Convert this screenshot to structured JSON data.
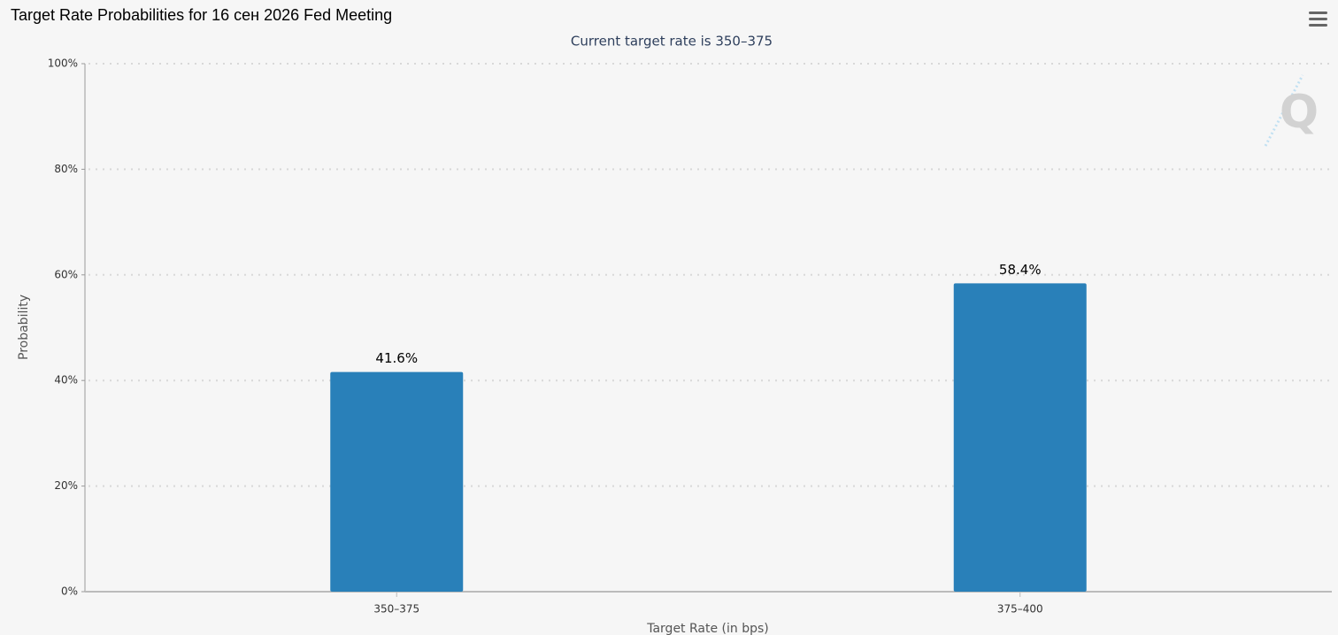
{
  "chart_data": {
    "type": "bar",
    "title": "Target Rate Probabilities for 16 сен 2026 Fed Meeting",
    "subtitle": "Current target rate is 350–375",
    "y_label": "Probability",
    "x_label": "Target Rate (in bps)",
    "categories": [
      "350–375",
      "375–400"
    ],
    "values": [
      41.6,
      58.4
    ],
    "value_labels": [
      "41.6%",
      "58.4%"
    ],
    "color": "#2980b9",
    "ylim": [
      0,
      100
    ],
    "yticks": [
      {
        "value": 0,
        "label": "0%"
      },
      {
        "value": 20,
        "label": "20%"
      },
      {
        "value": 40,
        "label": "40%"
      },
      {
        "value": 60,
        "label": "60%"
      },
      {
        "value": 80,
        "label": "80%"
      },
      {
        "value": 100,
        "label": "100%"
      }
    ],
    "grid": true
  }
}
